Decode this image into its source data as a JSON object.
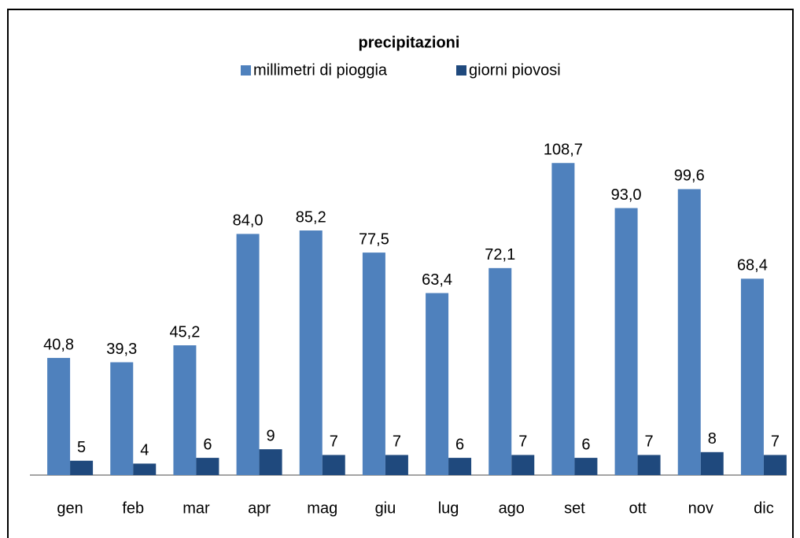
{
  "chart_data": {
    "type": "bar",
    "title": "precipitazioni",
    "categories": [
      "gen",
      "feb",
      "mar",
      "apr",
      "mag",
      "giu",
      "lug",
      "ago",
      "set",
      "ott",
      "nov",
      "dic"
    ],
    "series": [
      {
        "name": "millimetri di pioggia",
        "color": "#4f81bd",
        "values": [
          40.8,
          39.3,
          45.2,
          84.0,
          85.2,
          77.5,
          63.4,
          72.1,
          108.7,
          93.0,
          99.6,
          68.4
        ],
        "value_labels": [
          "40,8",
          "39,3",
          "45,2",
          "84,0",
          "85,2",
          "77,5",
          "63,4",
          "72,1",
          "108,7",
          "93,0",
          "99,6",
          "68,4"
        ]
      },
      {
        "name": "giorni piovosi",
        "color": "#1f497d",
        "values": [
          5,
          4,
          6,
          9,
          7,
          7,
          6,
          7,
          6,
          7,
          8,
          7
        ]
      }
    ],
    "ylim": [
      0,
      120
    ],
    "legend": "top",
    "grid": false
  }
}
